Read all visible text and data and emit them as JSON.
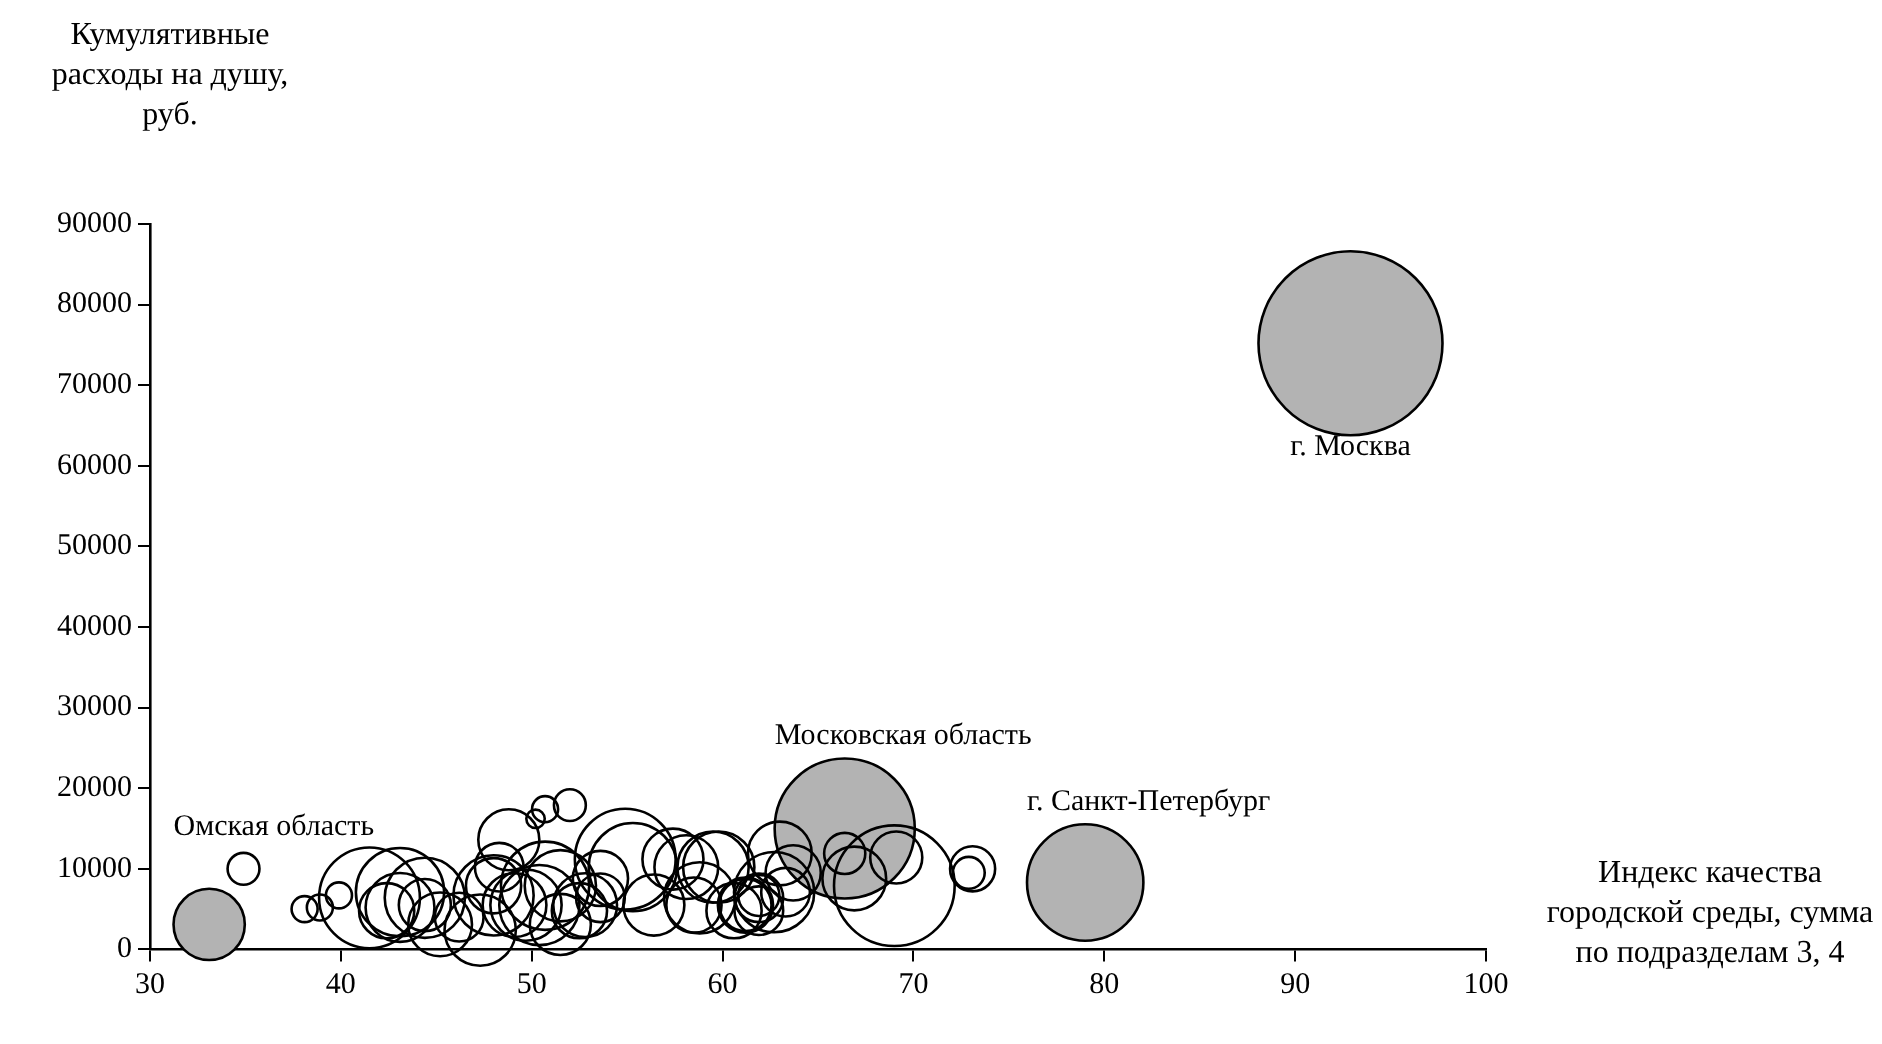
{
  "chart_data": {
    "type": "bubble",
    "ylabel": "Кумулятивные расходы на душу, руб.",
    "xlabel": "Индекс качества городской среды, сумма по подразделам 3, 4",
    "xlim": [
      30,
      100
    ],
    "xticks": [
      30,
      40,
      50,
      60,
      70,
      80,
      90,
      100
    ],
    "ylim": [
      0,
      90000
    ],
    "yticks": [
      0,
      10000,
      20000,
      30000,
      40000,
      50000,
      60000,
      70000,
      80000,
      90000
    ],
    "grid": false,
    "legend": false,
    "series": [
      {
        "color": "#000000",
        "x": [
          34.9,
          38.1,
          38.9,
          39.9,
          41.5,
          43.1,
          42.4,
          44.4,
          45.2,
          48.0,
          48.3,
          49.7,
          50.7,
          51.5,
          50.2,
          50.7,
          52.0,
          52.8,
          54.9,
          53.6,
          58.1,
          58.8,
          60.6,
          61.9,
          57.4,
          59.5,
          61.2,
          62.7,
          61.9,
          63.7,
          66.9,
          69.0,
          69.1,
          73.1,
          72.9,
          66.4,
          43.1,
          48.0,
          49.1,
          50.4,
          51.5,
          52.5,
          53.6,
          55.3,
          56.4,
          58.5,
          59.8,
          61.2,
          61.9,
          63.3,
          63.0,
          48.8,
          44.4,
          46.2,
          47.3
        ],
        "values": [
          10000,
          5000,
          5200,
          6700,
          6400,
          7100,
          4800,
          6400,
          3100,
          6700,
          10200,
          5500,
          7900,
          3100,
          16200,
          17400,
          17900,
          5500,
          11200,
          8800,
          10200,
          6400,
          4800,
          6400,
          11200,
          10200,
          5500,
          7100,
          4800,
          9500,
          8800,
          7900,
          11400,
          10000,
          9500,
          11900,
          5200,
          7900,
          5500,
          5500,
          7900,
          4800,
          6400,
          10200,
          5500,
          5500,
          10200,
          5500,
          6700,
          7100,
          11900,
          13600,
          5500,
          4000,
          2400
        ],
        "sizes": [
          0.03,
          0.02,
          0.02,
          0.02,
          0.3,
          0.23,
          0.09,
          0.19,
          0.12,
          0.19,
          0.07,
          0.15,
          0.23,
          0.11,
          0.01,
          0.02,
          0.03,
          0.12,
          0.3,
          0.09,
          0.12,
          0.15,
          0.09,
          0.07,
          0.11,
          0.15,
          0.09,
          0.19,
          0.07,
          0.09,
          0.12,
          0.43,
          0.08,
          0.06,
          0.03,
          0.05,
          0.14,
          0.09,
          0.12,
          0.19,
          0.15,
          0.09,
          0.07,
          0.23,
          0.11,
          0.09,
          0.15,
          0.08,
          0.05,
          0.07,
          0.12,
          0.11,
          0.08,
          0.07,
          0.15
        ]
      },
      {
        "color": "#b3b3b3",
        "x": [
          92.9,
          79.0,
          66.4,
          33.1
        ],
        "values": [
          75200,
          8300,
          15000,
          3100
        ],
        "sizes": [
          1,
          0.4,
          0.58,
          0.15
        ]
      }
    ],
    "annotations": [
      {
        "text": "г. Москва",
        "x": 92.9,
        "y": 75200
      },
      {
        "text": "г. Санкт-Петербург",
        "x": 79.0,
        "y": 8300
      },
      {
        "text": "Московская область",
        "x": 66.4,
        "y": 15000
      },
      {
        "text": "Омская область",
        "x": 33.1,
        "y": 3100
      }
    ]
  }
}
